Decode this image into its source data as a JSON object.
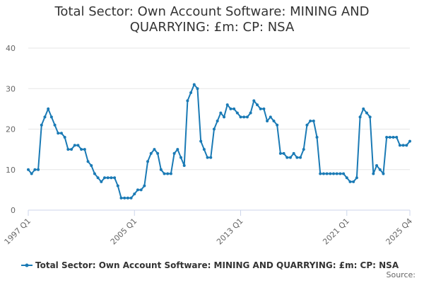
{
  "chart_data": {
    "type": "line",
    "title": "Total Sector: Own Account Software: MINING AND QUARRYING: £m: CP: NSA",
    "source": "Source:",
    "categories": [
      "1997 Q1",
      null,
      null,
      null,
      null,
      null,
      null,
      null,
      null,
      null,
      null,
      null,
      null,
      null,
      null,
      null,
      null,
      null,
      null,
      null,
      null,
      null,
      null,
      null,
      null,
      null,
      null,
      null,
      null,
      null,
      null,
      null,
      "2005 Q1",
      null,
      null,
      null,
      null,
      null,
      null,
      null,
      null,
      null,
      null,
      null,
      null,
      null,
      null,
      null,
      null,
      null,
      null,
      null,
      null,
      null,
      null,
      null,
      null,
      null,
      null,
      null,
      null,
      null,
      null,
      null,
      "2013 Q1",
      null,
      null,
      null,
      null,
      null,
      null,
      null,
      null,
      null,
      null,
      null,
      null,
      null,
      null,
      null,
      null,
      null,
      null,
      null,
      null,
      null,
      null,
      null,
      null,
      null,
      null,
      null,
      null,
      null,
      null,
      null,
      "2021 Q1",
      null,
      null,
      null,
      null,
      null,
      null,
      null,
      null,
      null,
      null,
      null,
      null,
      null,
      null,
      null,
      null,
      null,
      null,
      "2025 Q4"
    ],
    "series": [
      {
        "name": "Total Sector: Own Account Software: MINING AND QUARRYING: £m: CP: NSA",
        "color": "#1a7ab5",
        "values": [
          10,
          9,
          10,
          10,
          21,
          23,
          25,
          23,
          21,
          19,
          19,
          18,
          15,
          15,
          16,
          16,
          15,
          15,
          12,
          11,
          9,
          8,
          7,
          8,
          8,
          8,
          8,
          6,
          3,
          3,
          3,
          3,
          4,
          5,
          5,
          6,
          12,
          14,
          15,
          14,
          10,
          9,
          9,
          9,
          14,
          15,
          13,
          11,
          27,
          29,
          31,
          30,
          17,
          15,
          13,
          13,
          20,
          22,
          24,
          23,
          26,
          25,
          25,
          24,
          23,
          23,
          23,
          24,
          27,
          26,
          25,
          25,
          22,
          23,
          22,
          21,
          14,
          14,
          13,
          13,
          14,
          13,
          13,
          15,
          21,
          22,
          22,
          18,
          9,
          9,
          9,
          9,
          9,
          9,
          9,
          9,
          8,
          7,
          7,
          8,
          23,
          25,
          24,
          23,
          9,
          11,
          10,
          9,
          18,
          18,
          18,
          18,
          16,
          16,
          16,
          17
        ]
      }
    ],
    "ylim": [
      0,
      40
    ],
    "yticks": [
      0,
      10,
      20,
      30,
      40
    ],
    "grid": true
  }
}
